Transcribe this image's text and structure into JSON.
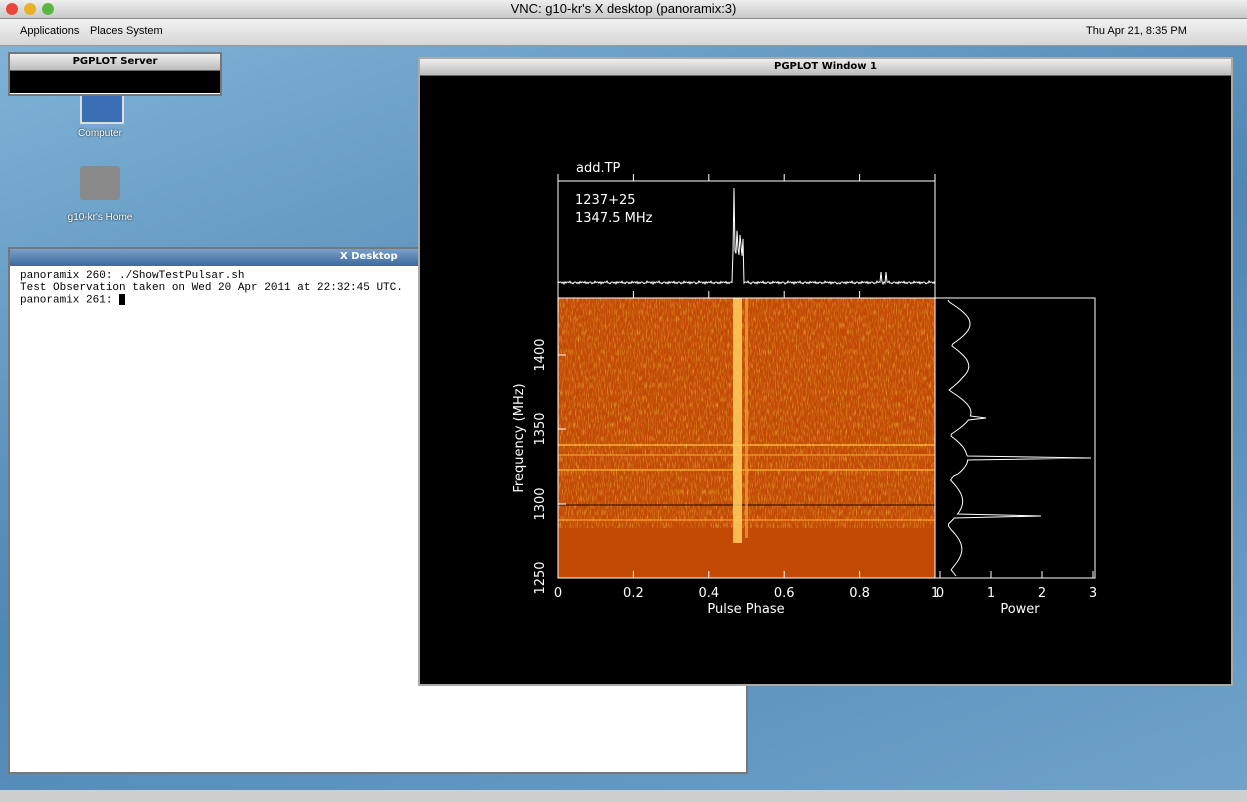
{
  "vnc_title": "VNC: g10-kr's X desktop (panoramix:3)",
  "panel": {
    "menus": [
      "Applications",
      "Places",
      "System"
    ],
    "clock": "Thu Apr 21,  8:35 PM"
  },
  "desktop_icons": [
    "Computer",
    "g10-kr's Home"
  ],
  "pgplot_server": {
    "title": "PGPLOT Server"
  },
  "x_desktop": {
    "title": "X Desktop",
    "lines": [
      "panoramix 260: ./ShowTestPulsar.sh",
      "Test Observation taken on Wed 20 Apr 2011 at 22:32:45 UTC.",
      "panoramix 261: "
    ]
  },
  "pgplot_window": {
    "title": "PGPLOT Window 1",
    "plot": {
      "label": "add.TP",
      "source": "1237+25",
      "frequency": "1347.5 MHz",
      "y_axis_title": "Frequency (MHz)",
      "y_ticks": [
        "1250",
        "1300",
        "1350",
        "1400"
      ],
      "x_axis_title": "Pulse Phase",
      "x_ticks": [
        "0",
        "0.2",
        "0.4",
        "0.6",
        "0.8",
        "1"
      ],
      "power_title": "Power",
      "power_ticks": [
        "0",
        "1",
        "2",
        "3"
      ]
    }
  }
}
